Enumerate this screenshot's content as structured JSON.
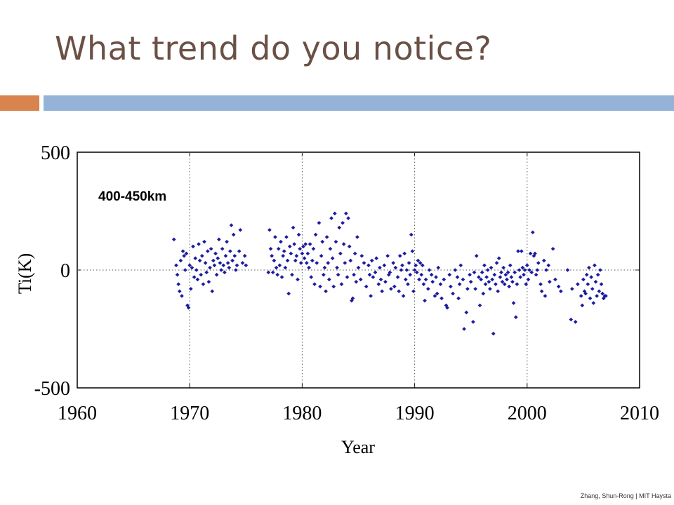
{
  "slide": {
    "title": "What trend do you notice?",
    "credit": "Zhang, Shun-Rong | MIT Haysta",
    "accent_colors": {
      "orange": "#d9844e",
      "blue": "#95b3d7"
    },
    "title_color": "#6b5046"
  },
  "chart_data": {
    "type": "scatter",
    "title": "",
    "annotation": "400-450km",
    "xlabel": "Year",
    "ylabel": "Ti(K)",
    "xlim": [
      1960,
      2010
    ],
    "ylim": [
      -500,
      500
    ],
    "xticks": [
      "1960",
      "1970",
      "1980",
      "1990",
      "2000",
      "2010"
    ],
    "yticks": [
      "500",
      "0",
      "-500"
    ],
    "grid": "dotted vertical at 1970, 1980, 1990, 2000; dotted horizontal at 0",
    "legend": "none",
    "marker_color": "#1a1aa0",
    "marker": "diamond",
    "points": [
      [
        1968.6,
        130
      ],
      [
        1968.8,
        20
      ],
      [
        1968.9,
        -20
      ],
      [
        1969.0,
        -60
      ],
      [
        1969.1,
        -90
      ],
      [
        1969.2,
        40
      ],
      [
        1969.3,
        -110
      ],
      [
        1969.4,
        80
      ],
      [
        1969.5,
        60
      ],
      [
        1969.6,
        0
      ],
      [
        1969.7,
        70
      ],
      [
        1969.8,
        -150
      ],
      [
        1969.9,
        -160
      ],
      [
        1970.0,
        20
      ],
      [
        1970.1,
        -80
      ],
      [
        1970.2,
        10
      ],
      [
        1970.3,
        100
      ],
      [
        1970.4,
        -30
      ],
      [
        1970.5,
        50
      ],
      [
        1970.6,
        0
      ],
      [
        1970.7,
        -40
      ],
      [
        1970.8,
        110
      ],
      [
        1970.9,
        40
      ],
      [
        1971.0,
        -20
      ],
      [
        1971.1,
        60
      ],
      [
        1971.2,
        -60
      ],
      [
        1971.3,
        120
      ],
      [
        1971.4,
        30
      ],
      [
        1971.5,
        -10
      ],
      [
        1971.6,
        80
      ],
      [
        1971.7,
        -50
      ],
      [
        1971.8,
        10
      ],
      [
        1971.9,
        90
      ],
      [
        1972.0,
        -90
      ],
      [
        1972.1,
        40
      ],
      [
        1972.2,
        20
      ],
      [
        1972.3,
        70
      ],
      [
        1972.4,
        -20
      ],
      [
        1972.5,
        50
      ],
      [
        1972.6,
        130
      ],
      [
        1972.7,
        30
      ],
      [
        1972.8,
        0
      ],
      [
        1972.9,
        90
      ],
      [
        1973.0,
        20
      ],
      [
        1973.1,
        -10
      ],
      [
        1973.2,
        60
      ],
      [
        1973.3,
        120
      ],
      [
        1973.4,
        30
      ],
      [
        1973.5,
        10
      ],
      [
        1973.6,
        80
      ],
      [
        1973.7,
        190
      ],
      [
        1973.8,
        40
      ],
      [
        1973.9,
        150
      ],
      [
        1974.0,
        60
      ],
      [
        1974.1,
        0
      ],
      [
        1974.2,
        20
      ],
      [
        1974.4,
        80
      ],
      [
        1974.5,
        170
      ],
      [
        1974.7,
        30
      ],
      [
        1974.9,
        60
      ],
      [
        1975.0,
        20
      ],
      [
        1977.0,
        -10
      ],
      [
        1977.1,
        170
      ],
      [
        1977.2,
        90
      ],
      [
        1977.3,
        60
      ],
      [
        1977.4,
        -10
      ],
      [
        1977.5,
        40
      ],
      [
        1977.6,
        140
      ],
      [
        1977.7,
        10
      ],
      [
        1977.8,
        -20
      ],
      [
        1977.9,
        90
      ],
      [
        1978.0,
        20
      ],
      [
        1978.1,
        120
      ],
      [
        1978.2,
        -30
      ],
      [
        1978.3,
        60
      ],
      [
        1978.4,
        80
      ],
      [
        1978.5,
        10
      ],
      [
        1978.6,
        140
      ],
      [
        1978.7,
        40
      ],
      [
        1978.8,
        -100
      ],
      [
        1978.9,
        100
      ],
      [
        1979.0,
        70
      ],
      [
        1979.1,
        -20
      ],
      [
        1979.2,
        180
      ],
      [
        1979.3,
        110
      ],
      [
        1979.4,
        40
      ],
      [
        1979.5,
        60
      ],
      [
        1979.6,
        -40
      ],
      [
        1979.7,
        150
      ],
      [
        1979.8,
        90
      ],
      [
        1979.9,
        30
      ],
      [
        1980.0,
        70
      ],
      [
        1980.1,
        100
      ],
      [
        1980.2,
        50
      ],
      [
        1980.3,
        110
      ],
      [
        1980.4,
        30
      ],
      [
        1980.5,
        70
      ],
      [
        1980.6,
        10
      ],
      [
        1980.7,
        110
      ],
      [
        1980.8,
        -30
      ],
      [
        1980.9,
        40
      ],
      [
        1981.0,
        90
      ],
      [
        1981.1,
        -60
      ],
      [
        1981.2,
        150
      ],
      [
        1981.3,
        30
      ],
      [
        1981.5,
        200
      ],
      [
        1981.6,
        -70
      ],
      [
        1981.7,
        60
      ],
      [
        1981.8,
        120
      ],
      [
        1981.9,
        -20
      ],
      [
        1982.0,
        10
      ],
      [
        1982.1,
        -90
      ],
      [
        1982.2,
        140
      ],
      [
        1982.3,
        30
      ],
      [
        1982.4,
        -40
      ],
      [
        1982.5,
        90
      ],
      [
        1982.6,
        220
      ],
      [
        1982.7,
        50
      ],
      [
        1982.8,
        -70
      ],
      [
        1982.9,
        240
      ],
      [
        1983.0,
        120
      ],
      [
        1983.1,
        10
      ],
      [
        1983.2,
        -20
      ],
      [
        1983.3,
        180
      ],
      [
        1983.4,
        70
      ],
      [
        1983.5,
        -60
      ],
      [
        1983.6,
        200
      ],
      [
        1983.7,
        110
      ],
      [
        1983.8,
        30
      ],
      [
        1983.9,
        240
      ],
      [
        1984.0,
        -30
      ],
      [
        1984.1,
        220
      ],
      [
        1984.2,
        100
      ],
      [
        1984.3,
        40
      ],
      [
        1984.4,
        -130
      ],
      [
        1984.5,
        -120
      ],
      [
        1984.6,
        -20
      ],
      [
        1984.7,
        70
      ],
      [
        1984.8,
        -50
      ],
      [
        1984.9,
        140
      ],
      [
        1985.0,
        10
      ],
      [
        1985.2,
        -40
      ],
      [
        1985.3,
        60
      ],
      [
        1985.5,
        30
      ],
      [
        1985.7,
        -70
      ],
      [
        1985.9,
        20
      ],
      [
        1986.0,
        -20
      ],
      [
        1986.1,
        -110
      ],
      [
        1986.2,
        40
      ],
      [
        1986.3,
        -30
      ],
      [
        1986.5,
        -10
      ],
      [
        1986.6,
        50
      ],
      [
        1986.8,
        -60
      ],
      [
        1986.9,
        10
      ],
      [
        1987.0,
        -40
      ],
      [
        1987.1,
        -90
      ],
      [
        1987.3,
        20
      ],
      [
        1987.4,
        -50
      ],
      [
        1987.6,
        60
      ],
      [
        1987.7,
        -20
      ],
      [
        1987.8,
        -10
      ],
      [
        1987.9,
        -80
      ],
      [
        1988.1,
        30
      ],
      [
        1988.2,
        -70
      ],
      [
        1988.3,
        10
      ],
      [
        1988.5,
        -30
      ],
      [
        1988.6,
        -90
      ],
      [
        1988.7,
        60
      ],
      [
        1988.8,
        0
      ],
      [
        1988.9,
        20
      ],
      [
        1989.0,
        -110
      ],
      [
        1989.1,
        70
      ],
      [
        1989.2,
        -40
      ],
      [
        1989.3,
        0
      ],
      [
        1989.4,
        -60
      ],
      [
        1989.5,
        30
      ],
      [
        1989.6,
        -20
      ],
      [
        1989.7,
        150
      ],
      [
        1989.8,
        80
      ],
      [
        1989.9,
        -90
      ],
      [
        1990.0,
        0
      ],
      [
        1990.1,
        20
      ],
      [
        1990.2,
        -10
      ],
      [
        1990.3,
        40
      ],
      [
        1990.4,
        -40
      ],
      [
        1990.5,
        30
      ],
      [
        1990.6,
        -20
      ],
      [
        1990.7,
        20
      ],
      [
        1990.8,
        -60
      ],
      [
        1990.9,
        -130
      ],
      [
        1991.0,
        -40
      ],
      [
        1991.2,
        -80
      ],
      [
        1991.3,
        0
      ],
      [
        1991.5,
        -20
      ],
      [
        1991.6,
        -50
      ],
      [
        1991.8,
        -110
      ],
      [
        1991.9,
        -30
      ],
      [
        1992.0,
        -100
      ],
      [
        1992.1,
        10
      ],
      [
        1992.3,
        -60
      ],
      [
        1992.4,
        -120
      ],
      [
        1992.6,
        -40
      ],
      [
        1992.8,
        -150
      ],
      [
        1992.9,
        -160
      ],
      [
        1993.1,
        -20
      ],
      [
        1993.2,
        -70
      ],
      [
        1993.4,
        -100
      ],
      [
        1993.6,
        0
      ],
      [
        1993.8,
        -30
      ],
      [
        1993.9,
        -120
      ],
      [
        1994.0,
        -60
      ],
      [
        1994.1,
        20
      ],
      [
        1994.3,
        -40
      ],
      [
        1994.4,
        -250
      ],
      [
        1994.6,
        -180
      ],
      [
        1994.7,
        -80
      ],
      [
        1994.9,
        -20
      ],
      [
        1995.0,
        -50
      ],
      [
        1995.2,
        -220
      ],
      [
        1995.3,
        -10
      ],
      [
        1995.4,
        -80
      ],
      [
        1995.5,
        60
      ],
      [
        1995.7,
        -30
      ],
      [
        1995.8,
        -150
      ],
      [
        1995.9,
        -40
      ],
      [
        1996.0,
        -10
      ],
      [
        1996.1,
        -100
      ],
      [
        1996.2,
        20
      ],
      [
        1996.3,
        -60
      ],
      [
        1996.4,
        -30
      ],
      [
        1996.5,
        0
      ],
      [
        1996.6,
        -50
      ],
      [
        1996.7,
        -80
      ],
      [
        1996.8,
        10
      ],
      [
        1996.9,
        -40
      ],
      [
        1997.0,
        -270
      ],
      [
        1997.1,
        -20
      ],
      [
        1997.2,
        -60
      ],
      [
        1997.3,
        30
      ],
      [
        1997.4,
        -90
      ],
      [
        1997.5,
        50
      ],
      [
        1997.6,
        -30
      ],
      [
        1997.7,
        -10
      ],
      [
        1997.8,
        -50
      ],
      [
        1997.9,
        10
      ],
      [
        1998.0,
        -60
      ],
      [
        1998.1,
        -20
      ],
      [
        1998.2,
        -40
      ],
      [
        1998.3,
        -10
      ],
      [
        1998.4,
        -70
      ],
      [
        1998.5,
        20
      ],
      [
        1998.6,
        -30
      ],
      [
        1998.7,
        -50
      ],
      [
        1998.8,
        -140
      ],
      [
        1998.9,
        -10
      ],
      [
        1999.0,
        -200
      ],
      [
        1999.1,
        -60
      ],
      [
        1999.2,
        80
      ],
      [
        1999.3,
        0
      ],
      [
        1999.4,
        -30
      ],
      [
        1999.5,
        80
      ],
      [
        1999.6,
        10
      ],
      [
        1999.7,
        -20
      ],
      [
        1999.8,
        0
      ],
      [
        1999.9,
        -60
      ],
      [
        2000.0,
        20
      ],
      [
        2000.1,
        -40
      ],
      [
        2000.2,
        0
      ],
      [
        2000.3,
        70
      ],
      [
        2000.4,
        -10
      ],
      [
        2000.5,
        160
      ],
      [
        2000.6,
        60
      ],
      [
        2000.7,
        70
      ],
      [
        2000.8,
        -20
      ],
      [
        2000.9,
        0
      ],
      [
        2001.0,
        30
      ],
      [
        2001.2,
        -60
      ],
      [
        2001.3,
        -90
      ],
      [
        2001.5,
        40
      ],
      [
        2001.6,
        -110
      ],
      [
        2001.7,
        0
      ],
      [
        2001.9,
        20
      ],
      [
        2002.0,
        -50
      ],
      [
        2002.3,
        90
      ],
      [
        2002.5,
        -40
      ],
      [
        2002.8,
        -70
      ],
      [
        2003.0,
        -90
      ],
      [
        2003.6,
        0
      ],
      [
        2003.9,
        -210
      ],
      [
        2004.0,
        -80
      ],
      [
        2004.3,
        -220
      ],
      [
        2004.5,
        -60
      ],
      [
        2004.8,
        -110
      ],
      [
        2004.9,
        -150
      ],
      [
        2005.0,
        -40
      ],
      [
        2005.1,
        -90
      ],
      [
        2005.2,
        -100
      ],
      [
        2005.3,
        -20
      ],
      [
        2005.4,
        -60
      ],
      [
        2005.5,
        10
      ],
      [
        2005.6,
        -120
      ],
      [
        2005.7,
        -30
      ],
      [
        2005.8,
        -80
      ],
      [
        2005.9,
        -140
      ],
      [
        2006.0,
        20
      ],
      [
        2006.1,
        -50
      ],
      [
        2006.2,
        -110
      ],
      [
        2006.3,
        -20
      ],
      [
        2006.4,
        -90
      ],
      [
        2006.5,
        0
      ],
      [
        2006.6,
        -60
      ],
      [
        2006.7,
        -100
      ],
      [
        2006.8,
        -120
      ],
      [
        2006.9,
        -110
      ],
      [
        2007.0,
        -110
      ]
    ]
  }
}
